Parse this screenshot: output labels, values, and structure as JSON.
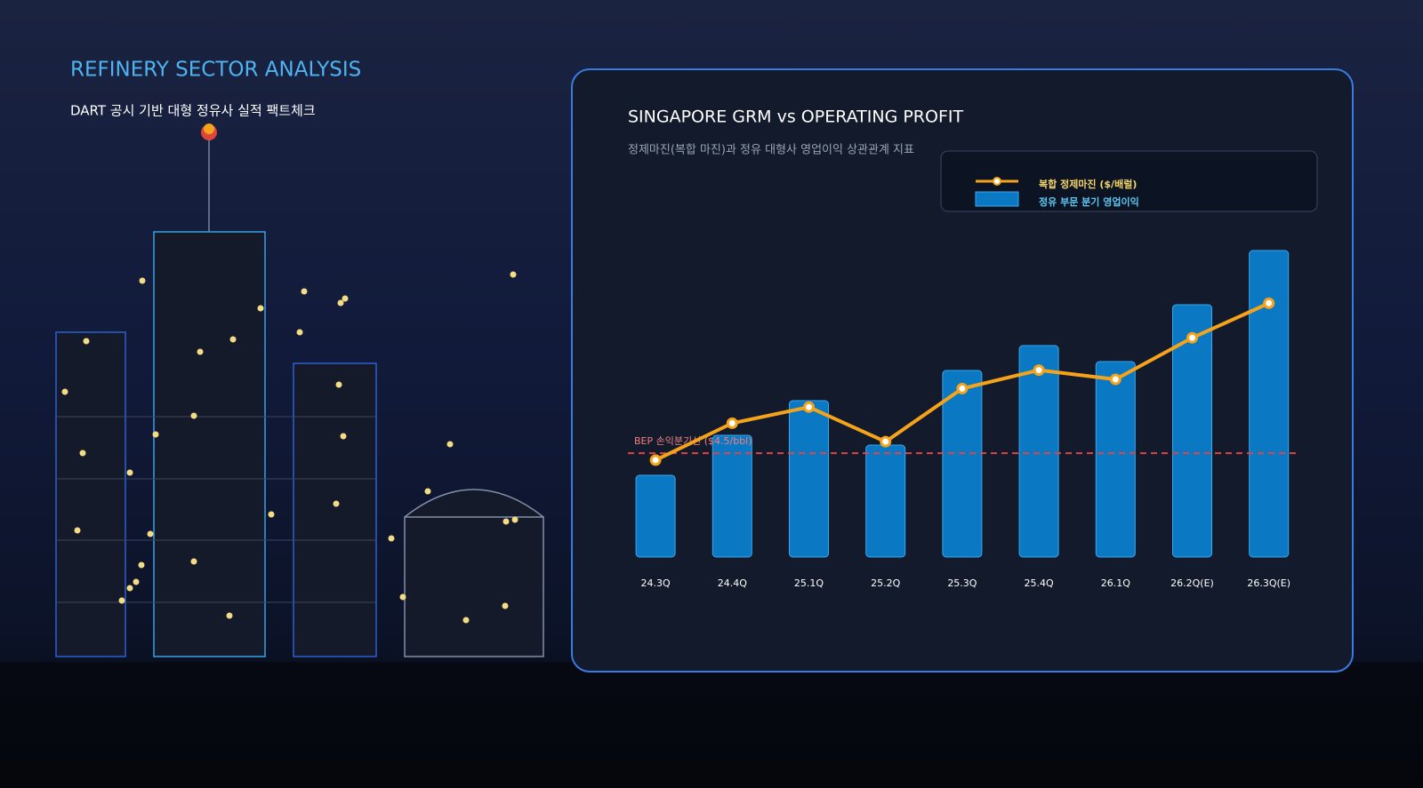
{
  "header": {
    "title": "REFINERY SECTOR ANALYSIS",
    "subtitle": "DART 공시 기반 대형 정유사 실적 팩트체크"
  },
  "chart_data": {
    "type": "combo",
    "title": "SINGAPORE GRM vs OPERATING PROFIT",
    "subtitle": "정제마진(복합 마진)과 정유 대형사 영업이익 상관관계 지표",
    "categories": [
      "24.3Q",
      "24.4Q",
      "25.1Q",
      "25.2Q",
      "25.3Q",
      "25.4Q",
      "26.1Q",
      "26.2Q(E)",
      "26.3Q(E)"
    ],
    "series": [
      {
        "name": "복합 정제마진 ($/배럴)",
        "type": "line",
        "color": "#f5a31a",
        "values": [
          4.2,
          5.8,
          6.5,
          5.0,
          7.3,
          8.1,
          7.7,
          9.5,
          11.0
        ]
      },
      {
        "name": "정유 부문 분기 영업이익",
        "type": "bar",
        "axis": "y2",
        "color": "#0a78c2",
        "values": [
          92,
          137,
          176,
          126,
          210,
          238,
          220,
          284,
          345
        ]
      }
    ],
    "reference_line": {
      "value": 4.5,
      "label": "BEP 손익분기선 ($4.5/bbl)",
      "color": "#e04545"
    },
    "ylim": [
      0,
      13.4
    ],
    "y2lim": [
      0,
      348
    ],
    "legend": "top-right"
  }
}
